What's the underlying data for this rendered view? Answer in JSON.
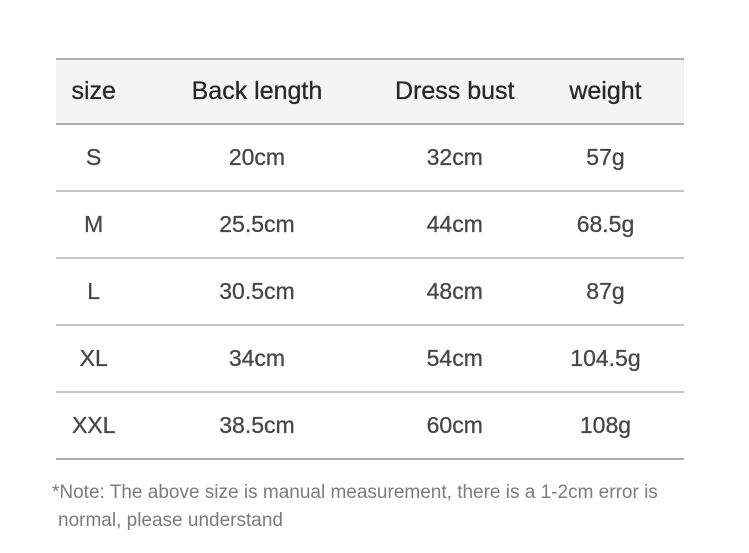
{
  "chart_data": {
    "type": "table",
    "columns": [
      "size",
      "Back length",
      "Dress bust",
      "weight"
    ],
    "rows": [
      [
        "S",
        "20cm",
        "32cm",
        "57g"
      ],
      [
        "M",
        "25.5cm",
        "44cm",
        "68.5g"
      ],
      [
        "L",
        "30.5cm",
        "48cm",
        "87g"
      ],
      [
        "XL",
        "34cm",
        "54cm",
        "104.5g"
      ],
      [
        "XXL",
        "38.5cm",
        "60cm",
        "108g"
      ]
    ],
    "note": "*Note: The above size is manual measurement, there is a 1-2cm error is normal, please understand"
  },
  "note": {
    "lines": [
      "*Note: The above size is manual measurement, there is a 1-2cm error is",
      "normal, please understand"
    ]
  },
  "colors": {
    "header_background": "#f4f4f4",
    "outer_border": "#aeaeae",
    "row_divider": "#c6c6c6",
    "header_text": "#282828",
    "cell_text": "#474747",
    "note_text": "#7c7c7c"
  }
}
